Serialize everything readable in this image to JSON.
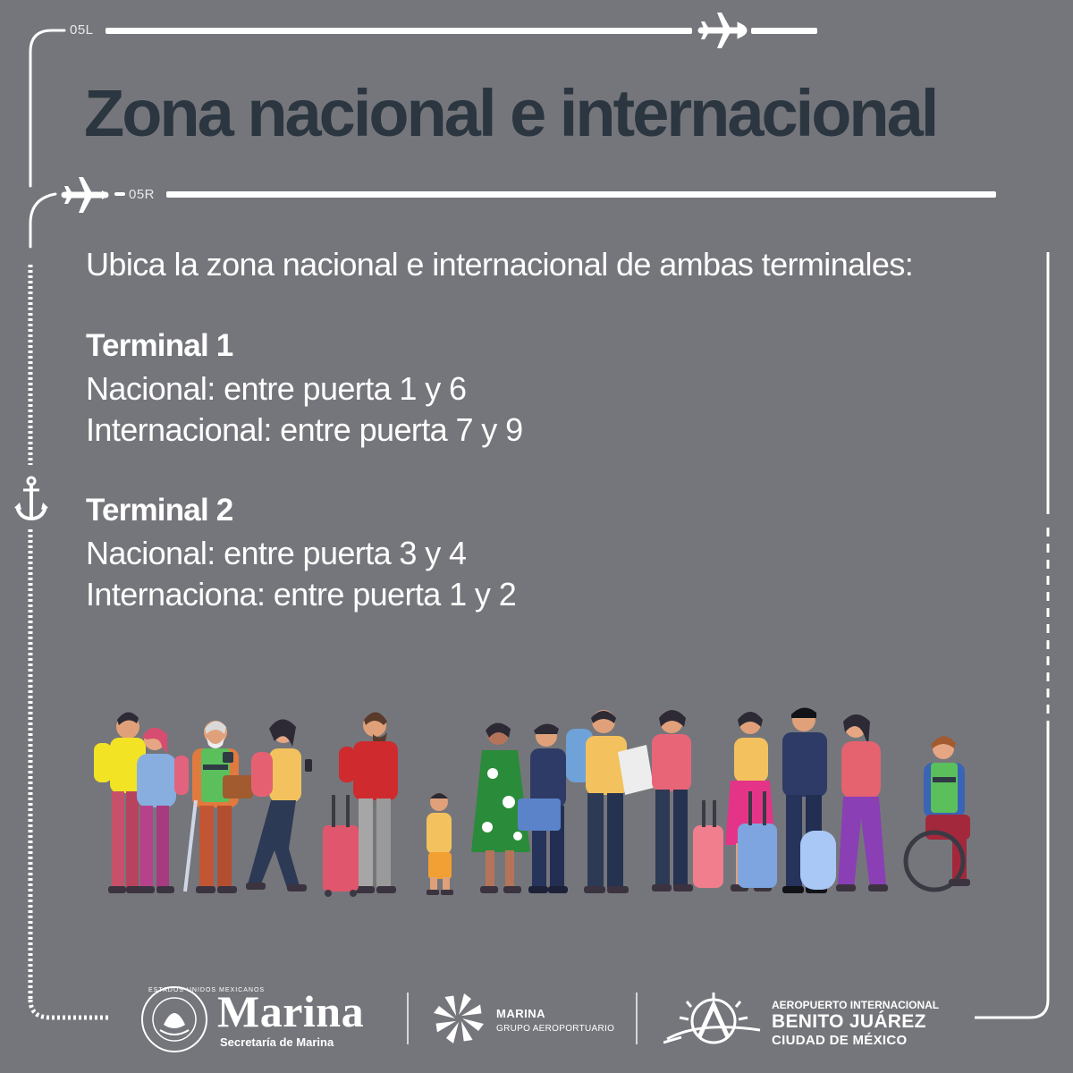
{
  "runways": {
    "top_label": "05L",
    "bottom_label": "05R"
  },
  "title": "Zona nacional e internacional",
  "intro": "Ubica la zona nacional e internacional de ambas terminales:",
  "terminals": [
    {
      "name": "Terminal 1",
      "nacional": "Nacional: entre puerta 1 y 6",
      "internacional": "Internacional: entre puerta 7 y 9"
    },
    {
      "name": "Terminal 2",
      "nacional": "Nacional: entre puerta 3 y 4",
      "internacional": "Internaciona: entre puerta 1 y 2"
    }
  ],
  "footer": {
    "marina": {
      "seal_text": "ESTADOS UNIDOS MEXICANOS",
      "name": "Marina",
      "subtitle": "Secretaría de Marina"
    },
    "grupo": {
      "name": "MARINA",
      "subtitle": "GRUPO AEROPORTUARIO"
    },
    "aicm": {
      "line1": "AEROPUERTO INTERNACIONAL",
      "line2": "BENITO JUÁREZ",
      "line3": "CIUDAD DE MÉXICO"
    }
  },
  "colors": {
    "background": "#75767b",
    "title": "#2b3640",
    "text": "#ffffff"
  },
  "icons": [
    "airplane-icon",
    "anchor-icon",
    "seal-icon",
    "pinwheel-icon",
    "aicm-emblem-icon"
  ]
}
